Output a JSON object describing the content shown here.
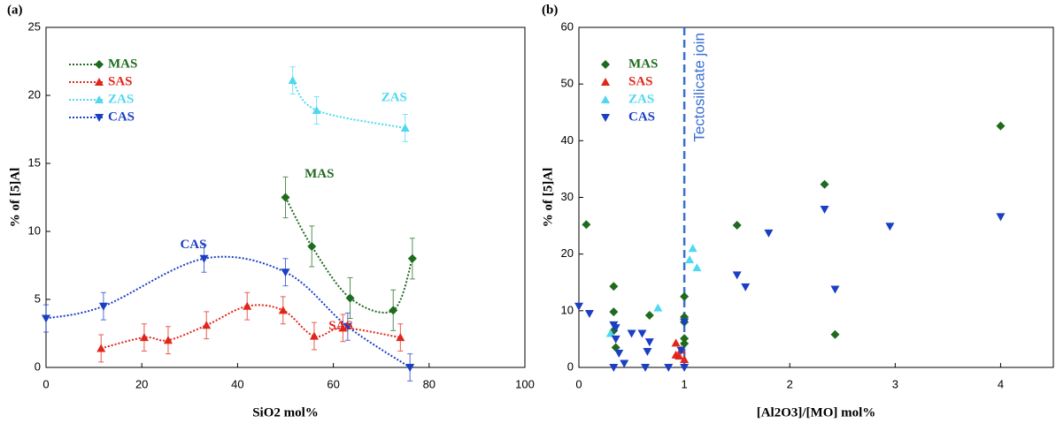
{
  "chart_data": [
    {
      "type": "scatter",
      "panel_label": "(a)",
      "xlabel": "SiO2 mol%",
      "ylabel": "% of [5]Al",
      "xlim": [
        0,
        100
      ],
      "ylim": [
        0,
        25
      ],
      "xticks": [
        0,
        20,
        40,
        60,
        80,
        100
      ],
      "yticks": [
        0,
        5,
        10,
        15,
        20,
        25
      ],
      "line_style": "dotted",
      "legend": "upper left",
      "series": [
        {
          "name": "MAS",
          "color": "#1e6b1e",
          "marker": "diamond",
          "x": [
            50,
            55.5,
            63.5,
            72.5,
            76.5
          ],
          "values": [
            12.5,
            8.9,
            5.1,
            4.2,
            8.0
          ],
          "errors": [
            1.5,
            1.5,
            1.5,
            1.5,
            1.5
          ]
        },
        {
          "name": "SAS",
          "color": "#e0261b",
          "marker": "triangle-up",
          "x": [
            11.5,
            20.5,
            25.5,
            33.5,
            42,
            49.5,
            56,
            62,
            74
          ],
          "values": [
            1.4,
            2.2,
            2.0,
            3.1,
            4.5,
            4.2,
            2.3,
            2.9,
            2.2
          ],
          "errors": [
            1,
            1,
            1,
            1,
            1,
            1,
            1,
            1,
            1
          ]
        },
        {
          "name": "ZAS",
          "color": "#4fd8f0",
          "marker": "triangle-up",
          "x": [
            51.5,
            56.5,
            75
          ],
          "values": [
            21.1,
            18.9,
            17.6
          ],
          "errors": [
            1,
            1,
            1
          ]
        },
        {
          "name": "CAS",
          "color": "#1a3fc4",
          "marker": "triangle-down",
          "x": [
            0,
            12,
            33,
            50,
            63,
            76
          ],
          "values": [
            3.6,
            4.5,
            8.0,
            7.0,
            3.0,
            0.0
          ],
          "errors": [
            1,
            1,
            1,
            1,
            1,
            1
          ]
        }
      ],
      "annotations": [
        {
          "text": "MAS",
          "color": "#1e6b1e"
        },
        {
          "text": "SAS",
          "color": "#e0261b"
        },
        {
          "text": "ZAS",
          "color": "#4fd8f0"
        },
        {
          "text": "CAS",
          "color": "#1a3fc4"
        }
      ]
    },
    {
      "type": "scatter",
      "panel_label": "(b)",
      "xlabel": "[Al2O3]/[MO] mol%",
      "ylabel": "% of [5]Al",
      "xlim": [
        0,
        4.5
      ],
      "ylim": [
        0,
        60
      ],
      "xticks": [
        0,
        1,
        2,
        3,
        4
      ],
      "yticks": [
        0,
        10,
        20,
        30,
        40,
        50,
        60
      ],
      "legend": "upper left",
      "reference_line": {
        "x": 1,
        "label": "Tectosilicate join",
        "color": "#3a6fd0"
      },
      "series": [
        {
          "name": "MAS",
          "color": "#1e6b1e",
          "marker": "diamond",
          "x": [
            0.07,
            0.33,
            0.33,
            0.33,
            0.35,
            0.67,
            1.0,
            1.0,
            1.0,
            1.0,
            1.0,
            1.5,
            2.33,
            2.43,
            4.0
          ],
          "values": [
            25.2,
            14.3,
            9.8,
            6.5,
            3.5,
            9.2,
            12.5,
            8.9,
            5.1,
            4.2,
            8.0,
            25.1,
            32.3,
            5.8,
            42.6
          ]
        },
        {
          "name": "SAS",
          "color": "#e0261b",
          "marker": "triangle-up",
          "x": [
            0.92,
            0.92,
            0.95,
            0.97,
            1.0
          ],
          "values": [
            4.3,
            2.2,
            2.0,
            3.1,
            1.4
          ]
        },
        {
          "name": "ZAS",
          "color": "#4fd8f0",
          "marker": "triangle-up",
          "x": [
            0.3,
            0.75,
            1.05,
            1.08,
            1.12
          ],
          "values": [
            6.0,
            10.5,
            19.0,
            21.0,
            17.6
          ]
        },
        {
          "name": "CAS",
          "color": "#1a3fc4",
          "marker": "triangle-down",
          "x": [
            0,
            0.1,
            0.33,
            0.35,
            0.35,
            0.33,
            0.38,
            0.43,
            0.5,
            0.6,
            0.63,
            0.67,
            0.65,
            0.85,
            1.0,
            0.97,
            1.0,
            1.5,
            1.58,
            1.8,
            2.33,
            2.43,
            2.95,
            4.0
          ],
          "values": [
            10.8,
            9.5,
            7.5,
            7.0,
            5.0,
            0,
            2.5,
            0.7,
            6.0,
            6.0,
            0,
            4.5,
            2.8,
            0,
            8.0,
            3.0,
            0,
            16.3,
            14.2,
            23.7,
            27.9,
            13.8,
            24.9,
            26.6
          ]
        }
      ]
    }
  ]
}
